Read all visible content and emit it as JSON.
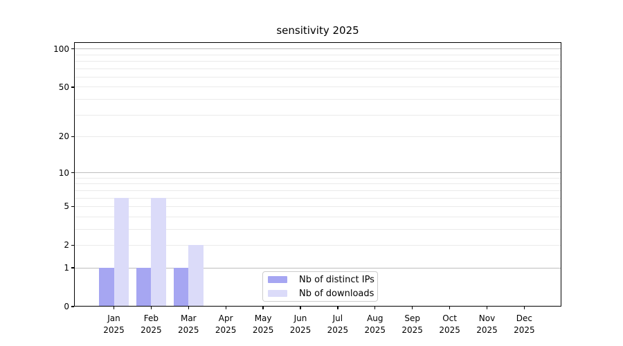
{
  "title": "sensitivity 2025",
  "chart_data": {
    "type": "bar",
    "title": "sensitivity 2025",
    "year": "2025",
    "months": [
      "Jan",
      "Feb",
      "Mar",
      "Apr",
      "May",
      "Jun",
      "Jul",
      "Aug",
      "Sep",
      "Oct",
      "Nov",
      "Dec"
    ],
    "x_categories": [
      "Jan 2025",
      "Feb 2025",
      "Mar 2025",
      "Apr 2025",
      "May 2025",
      "Jun 2025",
      "Jul 2025",
      "Aug 2025",
      "Sep 2025",
      "Oct 2025",
      "Nov 2025",
      "Dec 2025"
    ],
    "series": [
      {
        "name": "Nb of distinct IPs",
        "color": "#a6a6f2",
        "values": [
          1,
          1,
          1,
          0,
          0,
          0,
          0,
          0,
          0,
          0,
          0,
          0
        ]
      },
      {
        "name": "Nb of downloads",
        "color": "#dbdbf9",
        "values": [
          6,
          6,
          2,
          0,
          0,
          0,
          0,
          0,
          0,
          0,
          0,
          0
        ]
      }
    ],
    "y_scale": "log10(value+1)",
    "y_ticks": [
      100,
      50,
      20,
      10,
      5,
      2,
      1,
      0
    ],
    "y_major_gridlines": [
      1,
      10,
      100
    ],
    "y_minor_gridlines": [
      2,
      3,
      4,
      5,
      6,
      7,
      8,
      9,
      20,
      30,
      40,
      50,
      60,
      70,
      80,
      90
    ],
    "ylim": [
      0,
      110
    ],
    "grid": true,
    "legend_position": "bottom-center"
  },
  "colors": {
    "background": "#ffffff",
    "grid_major": "#bdbdbd",
    "grid_minor": "#eaeaea",
    "spine": "#000000",
    "text": "#000000",
    "legend_border": "#cccccc"
  }
}
